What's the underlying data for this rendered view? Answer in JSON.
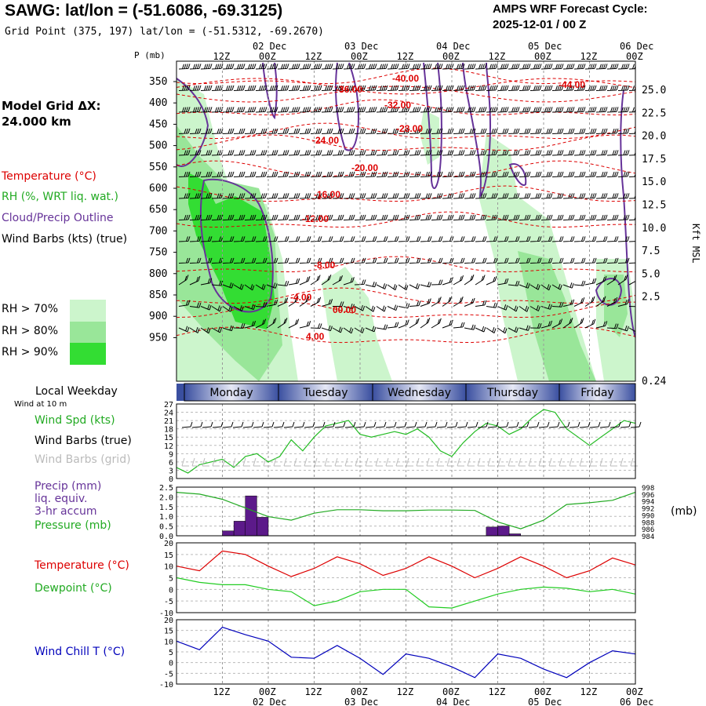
{
  "header": {
    "title": "SAWG:  lat/lon = (-51.6086, -69.3125)",
    "subtitle": "Grid Point (375, 197) lat/lon = (-51.5312, -69.2670)",
    "forecast_line1": "AMPS WRF Forecast Cycle:",
    "forecast_line2": "2025-12-01 / 00  Z"
  },
  "legend": {
    "model_grid": "Model Grid ΔX:",
    "model_grid_value": " 24.000 km",
    "temperature": "Temperature (°C)",
    "rh": "RH (%, WRT liq. wat.)",
    "cloud": "Cloud/Precip Outline",
    "wind_barbs": "Wind Barbs (kts) (true)",
    "rh70": "RH > 70%",
    "rh80": "RH > 80%",
    "rh90": "RH > 90%"
  },
  "colors": {
    "rh70": "#ccf5cc",
    "rh80": "#99e699",
    "rh90": "#33dd33",
    "temp": "#dd0000",
    "cloud": "#663399",
    "wind": "#22bb22",
    "pressure": "#22aa22",
    "precip": "#5c1a8a",
    "dewpoint": "#22cc22",
    "windchill": "#0000bb",
    "grid_barbs": "#bbbbbb"
  },
  "time_axis": {
    "top_labels": [
      "12Z",
      "00Z",
      "12Z",
      "00Z",
      "12Z",
      "00Z",
      "12Z",
      "00Z",
      "12Z",
      "00Z"
    ],
    "date_labels": [
      "02 Dec",
      "03 Dec",
      "04 Dec",
      "05 Dec",
      "06 Dec"
    ]
  },
  "weekdays": {
    "title": "Local Weekday",
    "subtitle": "Wind at 10 m",
    "days": [
      "Monday",
      "Tuesday",
      "Wednesday",
      "Thursday",
      "Friday"
    ]
  },
  "panel_labels": {
    "wind_spd": "Wind Spd (kts)",
    "wind_barbs_true": "Wind Barbs (true)",
    "wind_barbs_grid": "Wind Barbs (grid)",
    "precip1": "Precip (mm)",
    "precip2": "liq. equiv.",
    "precip3": "3-hr accum",
    "pressure": "Pressure (mb)",
    "pressure_unit": "(mb)",
    "temperature": "Temperature (°C)",
    "dewpoint": "Dewpoint (°C)",
    "windchill": "Wind Chill T (°C)"
  },
  "chart_data": [
    {
      "type": "heatmap",
      "title": "",
      "ylabel": "P (mb)",
      "y2label": "Kft MSL",
      "y_ticks": [
        "350",
        "400",
        "450",
        "500",
        "550",
        "600",
        "650",
        "700",
        "750",
        "800",
        "850",
        "900",
        "950"
      ],
      "y2_ticks": [
        "25.0",
        "22.5",
        "20.0",
        "17.5",
        "15.0",
        "12.5",
        "10.0",
        "7.5",
        "5.0",
        "2.5",
        "0.24"
      ],
      "temperature_contour_labels": [
        "-40.00",
        "-44.00",
        "-36.00",
        "-32.00",
        "-28.00",
        "-24.00",
        "-20.00",
        "-16.00",
        "-12.00",
        "-8.00",
        "-4.00",
        "00.00",
        "4.00"
      ]
    },
    {
      "type": "line",
      "title": "",
      "ylabel": "Wind Spd (kts)",
      "y_ticks": [
        "27",
        "24",
        "21",
        "18",
        "15",
        "12",
        "9",
        "6",
        "3",
        "0"
      ],
      "ylim": [
        0,
        27
      ],
      "x_hours": [
        0,
        3,
        6,
        9,
        12,
        15,
        18,
        21,
        24,
        27,
        30,
        33,
        36,
        39,
        42,
        45,
        48,
        51,
        54,
        57,
        60,
        63,
        66,
        69,
        72,
        75,
        78,
        81,
        84,
        87,
        90,
        93,
        96,
        99,
        102,
        105,
        108,
        111,
        114,
        117,
        120
      ],
      "series": [
        {
          "values": [
            4,
            2,
            5,
            6,
            7,
            4,
            8,
            9,
            6,
            8,
            14,
            10,
            15,
            19,
            20,
            21,
            16,
            15,
            16,
            17,
            16,
            18,
            15,
            10,
            8,
            13,
            17,
            20,
            19,
            16,
            18,
            22,
            25,
            24,
            18,
            15,
            12,
            15,
            18,
            21,
            20
          ]
        }
      ]
    },
    {
      "type": "bar",
      "title": "",
      "ylabel": "Precip (mm)",
      "y_ticks": [
        "2.5",
        "2.0",
        "1.5",
        "1.0",
        "0.5",
        "0.0"
      ],
      "ylim": [
        0,
        2.5
      ],
      "y2_ticks": [
        "998",
        "996",
        "994",
        "992",
        "990",
        "988",
        "986",
        "984"
      ],
      "y2lim": [
        984,
        998
      ],
      "precip_bars": [
        {
          "hour": 15,
          "value": 0.25
        },
        {
          "hour": 18,
          "value": 0.75
        },
        {
          "hour": 21,
          "value": 2.05
        },
        {
          "hour": 24,
          "value": 0.95
        },
        {
          "hour": 84,
          "value": 0.45
        },
        {
          "hour": 87,
          "value": 0.5
        },
        {
          "hour": 90,
          "value": 0.1
        }
      ],
      "x_hours": [
        0,
        6,
        12,
        18,
        24,
        30,
        36,
        42,
        48,
        54,
        60,
        66,
        72,
        78,
        84,
        90,
        96,
        102,
        108,
        114,
        120
      ],
      "series": [
        {
          "values": [
            996.5,
            996,
            994.5,
            992,
            989.5,
            988.5,
            990.5,
            991.5,
            991.5,
            991.2,
            991.2,
            991.4,
            991.4,
            991.3,
            988,
            986,
            988.5,
            993,
            993.5,
            994.2,
            996.5
          ]
        }
      ]
    },
    {
      "type": "line",
      "title": "",
      "ylabel": "Temperature (°C)",
      "y_ticks": [
        "20",
        "15",
        "10",
        "5",
        "0",
        "-5",
        "-10"
      ],
      "ylim": [
        -10,
        20
      ],
      "x_hours": [
        0,
        6,
        12,
        18,
        24,
        30,
        36,
        42,
        48,
        54,
        60,
        66,
        72,
        78,
        84,
        90,
        96,
        102,
        108,
        114,
        120
      ],
      "series": [
        {
          "values": [
            10,
            8,
            16.5,
            15,
            10,
            5.5,
            9,
            14,
            11,
            6,
            9,
            14,
            10,
            5,
            9,
            14,
            10,
            5,
            8,
            13.5,
            10.5
          ]
        },
        {
          "values": [
            5,
            3,
            2,
            2,
            0,
            -1,
            -7,
            -5,
            -1,
            0,
            0,
            -7.5,
            -8,
            -5,
            -2,
            0,
            1,
            0.5,
            -1,
            0,
            -2
          ]
        }
      ]
    },
    {
      "type": "line",
      "title": "",
      "ylabel": "Wind Chill T (°C)",
      "y_ticks": [
        "20",
        "15",
        "10",
        "5",
        "0",
        "-5",
        "-10"
      ],
      "ylim": [
        -10,
        20
      ],
      "x_hours": [
        0,
        6,
        12,
        18,
        24,
        30,
        36,
        42,
        48,
        54,
        60,
        66,
        72,
        78,
        84,
        90,
        96,
        102,
        108,
        114,
        120
      ],
      "series": [
        {
          "values": [
            10,
            6,
            16.5,
            13,
            10,
            2.5,
            2,
            8,
            2,
            -5.5,
            4,
            2,
            -2,
            -7,
            4,
            2,
            -3,
            -7,
            0,
            5.5,
            4
          ]
        }
      ]
    }
  ]
}
